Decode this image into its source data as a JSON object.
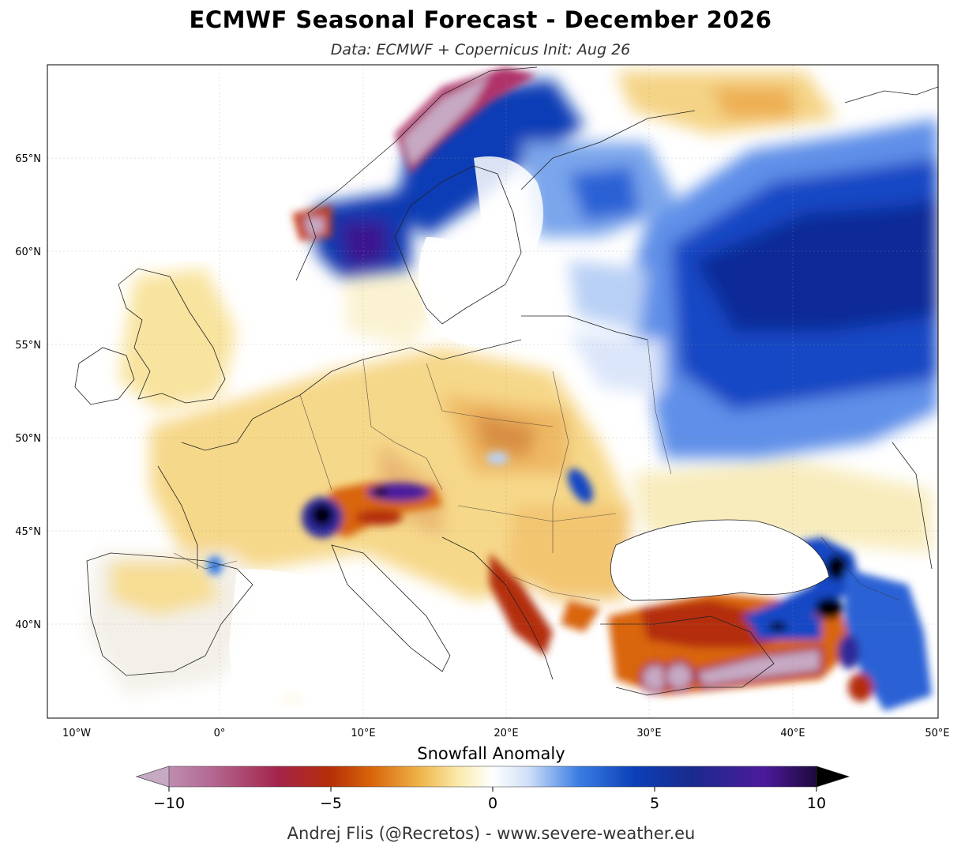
{
  "title": "ECMWF Seasonal Forecast - December 2026",
  "subtitle": "Data: ECMWF + Copernicus   Init: Aug 26",
  "colorbar": {
    "label": "Snowfall Anomaly",
    "ticks": [
      "−10",
      "−5",
      "0",
      "5",
      "10"
    ],
    "tick_values": [
      -10,
      -5,
      0,
      5,
      10
    ],
    "range": [
      -10,
      10
    ],
    "colors": [
      "#c6a9c3",
      "#b46c96",
      "#a5234a",
      "#b42e08",
      "#d9650a",
      "#f0b74c",
      "#fae9a8",
      "#ffffff",
      "#cfe0f8",
      "#3b7ee3",
      "#0b3fb8",
      "#1a2a8c",
      "#4c1a9c",
      "#000000"
    ]
  },
  "axes": {
    "lon_labels": [
      "10°W",
      "0°",
      "10°E",
      "20°E",
      "30°E",
      "40°E",
      "50°E"
    ],
    "lat_labels": [
      "65°N",
      "60°N",
      "55°N",
      "50°N",
      "45°N",
      "40°N"
    ],
    "lon_range": [
      -12,
      50
    ],
    "lat_range": [
      35,
      70
    ]
  },
  "credit": "Andrej Flis (@Recretos) - www.severe-weather.eu"
}
